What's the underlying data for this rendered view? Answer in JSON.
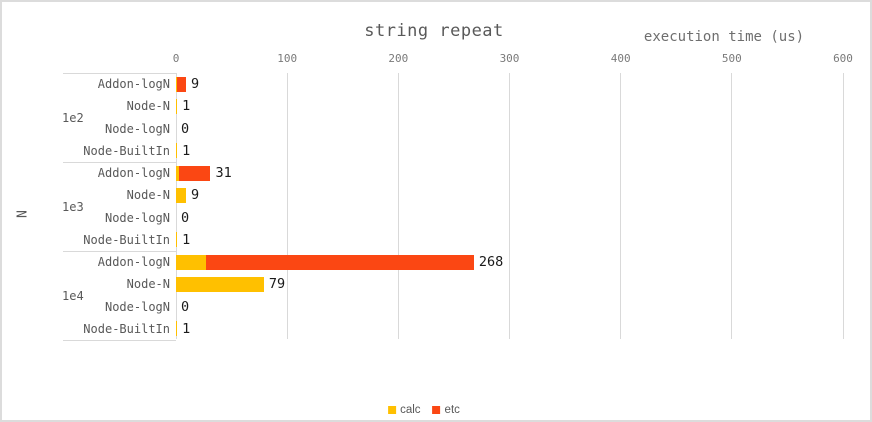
{
  "chart_data": {
    "type": "bar",
    "orientation": "horizontal-stacked",
    "title": "string repeat",
    "value_axis_title": "execution time (us)",
    "category_axis_title": "N",
    "xlim": [
      0,
      600
    ],
    "x_ticks": [
      0,
      100,
      200,
      300,
      400,
      500,
      600
    ],
    "grid": true,
    "legend_position": "bottom-center",
    "legend": [
      {
        "name": "calc",
        "color": "#FFC000"
      },
      {
        "name": "etc",
        "color": "#FB4713"
      }
    ],
    "groups": [
      {
        "label": "1e2",
        "rows": [
          {
            "category": "Addon-logN",
            "calc": 1,
            "etc": 8,
            "total": 9,
            "value_label": "9"
          },
          {
            "category": "Node-N",
            "calc": 1,
            "etc": 0,
            "total": 1,
            "value_label": "1"
          },
          {
            "category": "Node-logN",
            "calc": 0,
            "etc": 0,
            "total": 0,
            "value_label": "0"
          },
          {
            "category": "Node-BuiltIn",
            "calc": 1,
            "etc": 0,
            "total": 1,
            "value_label": "1"
          }
        ]
      },
      {
        "label": "1e3",
        "rows": [
          {
            "category": "Addon-logN",
            "calc": 3,
            "etc": 28,
            "total": 31,
            "value_label": "31"
          },
          {
            "category": "Node-N",
            "calc": 9,
            "etc": 0,
            "total": 9,
            "value_label": "9"
          },
          {
            "category": "Node-logN",
            "calc": 0,
            "etc": 0,
            "total": 0,
            "value_label": "0"
          },
          {
            "category": "Node-BuiltIn",
            "calc": 1,
            "etc": 0,
            "total": 1,
            "value_label": "1"
          }
        ]
      },
      {
        "label": "1e4",
        "rows": [
          {
            "category": "Addon-logN",
            "calc": 27,
            "etc": 241,
            "total": 268,
            "value_label": "268"
          },
          {
            "category": "Node-N",
            "calc": 79,
            "etc": 0,
            "total": 79,
            "value_label": "79"
          },
          {
            "category": "Node-logN",
            "calc": 0,
            "etc": 0,
            "total": 0,
            "value_label": "0"
          },
          {
            "category": "Node-BuiltIn",
            "calc": 1,
            "etc": 0,
            "total": 1,
            "value_label": "1"
          }
        ]
      }
    ]
  }
}
